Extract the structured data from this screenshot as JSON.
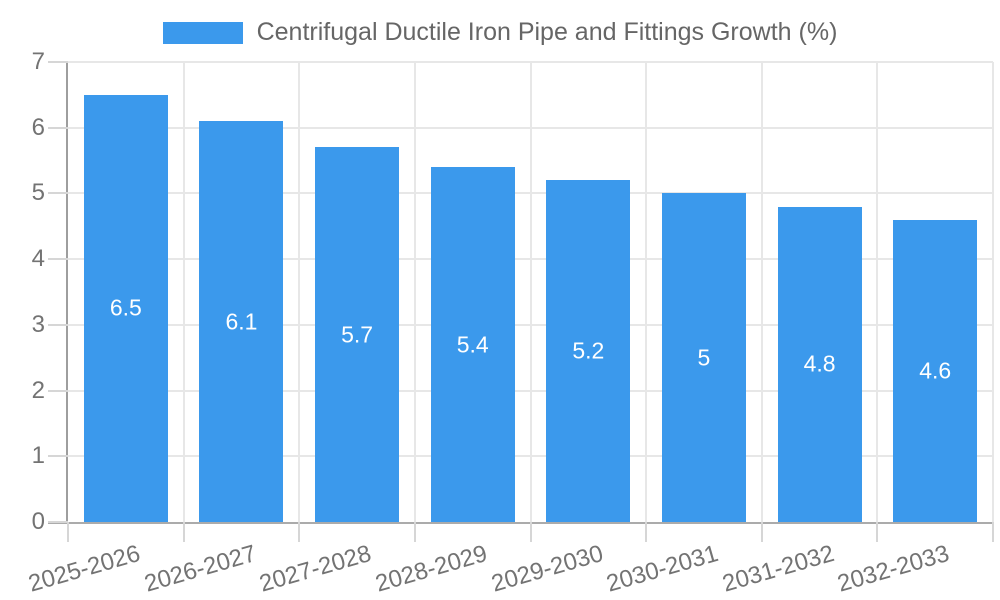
{
  "legend": {
    "label": "Centrifugal Ductile Iron Pipe and Fittings Growth (%)"
  },
  "chart_data": {
    "type": "bar",
    "title": "Centrifugal Ductile Iron Pipe and Fittings Growth (%)",
    "categories": [
      "2025-2026",
      "2026-2027",
      "2027-2028",
      "2028-2029",
      "2029-2030",
      "2030-2031",
      "2031-2032",
      "2032-2033"
    ],
    "values": [
      6.5,
      6.1,
      5.7,
      5.4,
      5.2,
      5,
      4.8,
      4.6
    ],
    "value_labels": [
      "6.5",
      "6.1",
      "5.7",
      "5.4",
      "5.2",
      "5",
      "4.8",
      "4.6"
    ],
    "xlabel": "",
    "ylabel": "",
    "ylim": [
      0,
      7
    ],
    "yticks": [
      0,
      1,
      2,
      3,
      4,
      5,
      6,
      7
    ],
    "grid": true,
    "legend_position": "top",
    "bar_color": "#3b99ec",
    "value_label_color": "#ffffff",
    "axis_text_color": "#737373"
  }
}
